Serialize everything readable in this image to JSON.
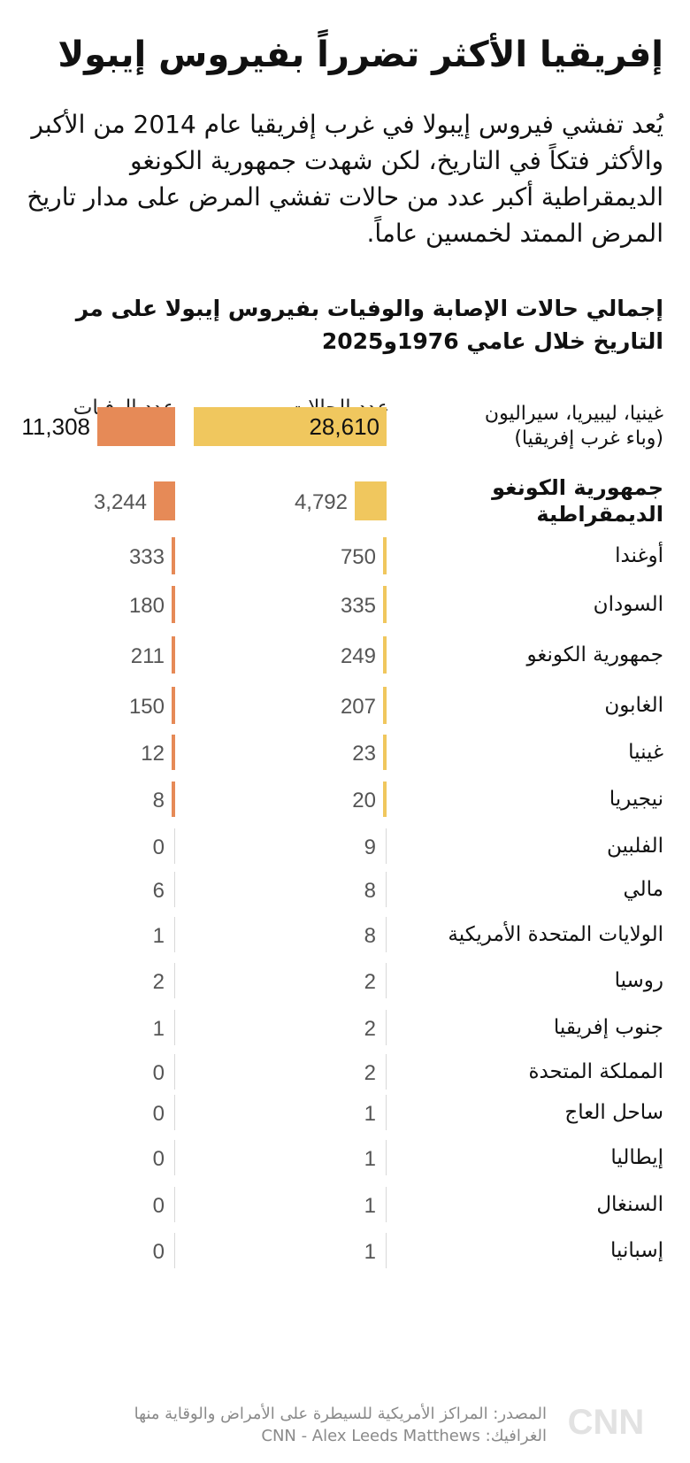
{
  "header": {
    "title": "إفريقيا الأكثر تضرراً بفيروس إيبولا",
    "description": "يُعد تفشي فيروس إيبولا في غرب إفريقيا عام 2014 من الأكبر والأكثر فتكاً في التاريخ، لكن شهدت جمهورية الكونغو الديمقراطية أكبر عدد من حالات تفشي المرض على مدار تاريخ المرض الممتد لخمسين عاماً.",
    "subtitle": "إجمالي حالات الإصابة والوفيات بفيروس إيبولا على مر التاريخ خلال عامي 1976و2025"
  },
  "chart_data": {
    "type": "bar",
    "title": "إجمالي حالات الإصابة والوفيات بفيروس إيبولا على مر التاريخ خلال عامي 1976و2025",
    "series": [
      {
        "name": "عدد الحالات",
        "color": "#f0c75e",
        "values": [
          28610,
          4792,
          750,
          335,
          249,
          207,
          23,
          20,
          9,
          8,
          8,
          2,
          2,
          2,
          1,
          1,
          1,
          1
        ]
      },
      {
        "name": "عدد الوفيات",
        "color": "#e68a57",
        "values": [
          11308,
          3244,
          333,
          180,
          211,
          150,
          12,
          8,
          0,
          6,
          1,
          2,
          1,
          0,
          0,
          0,
          0,
          0
        ]
      }
    ],
    "value_labels": {
      "cases": [
        "28,610",
        "4,792",
        "750",
        "335",
        "249",
        "207",
        "23",
        "20",
        "9",
        "8",
        "8",
        "2",
        "2",
        "2",
        "1",
        "1",
        "1",
        "1"
      ],
      "deaths": [
        "11,308",
        "3,244",
        "333",
        "180",
        "211",
        "150",
        "12",
        "8",
        "0",
        "6",
        "1",
        "2",
        "1",
        "0",
        "0",
        "0",
        "0",
        "0"
      ]
    },
    "categories": [
      {
        "line1": "غينيا، ليبيريا، سيراليون",
        "line2": "(وباء غرب إفريقيا)"
      },
      {
        "line1": "جمهورية الكونغو",
        "line2": "الديمقراطية"
      },
      {
        "line1": "أوغندا",
        "line2": ""
      },
      {
        "line1": "السودان",
        "line2": ""
      },
      {
        "line1": "جمهورية الكونغو",
        "line2": ""
      },
      {
        "line1": "الغابون",
        "line2": ""
      },
      {
        "line1": "غينيا",
        "line2": ""
      },
      {
        "line1": "نيجيريا",
        "line2": ""
      },
      {
        "line1": "الفلبين",
        "line2": ""
      },
      {
        "line1": "مالي",
        "line2": ""
      },
      {
        "line1": "الولايات المتحدة الأمريكية",
        "line2": ""
      },
      {
        "line1": "روسيا",
        "line2": ""
      },
      {
        "line1": "جنوب إفريقيا",
        "line2": ""
      },
      {
        "line1": "المملكة المتحدة",
        "line2": ""
      },
      {
        "line1": "ساحل العاج",
        "line2": ""
      },
      {
        "line1": "إيطاليا",
        "line2": ""
      },
      {
        "line1": "السنغال",
        "line2": ""
      },
      {
        "line1": "إسبانيا",
        "line2": ""
      }
    ]
  },
  "footer": {
    "source": "المصدر: المراكز الأمريكية للسيطرة على الأمراض والوقاية منها",
    "graphics": "الغرافيك: CNN - Alex Leeds Matthews",
    "logo": "CNN بالعربية"
  }
}
